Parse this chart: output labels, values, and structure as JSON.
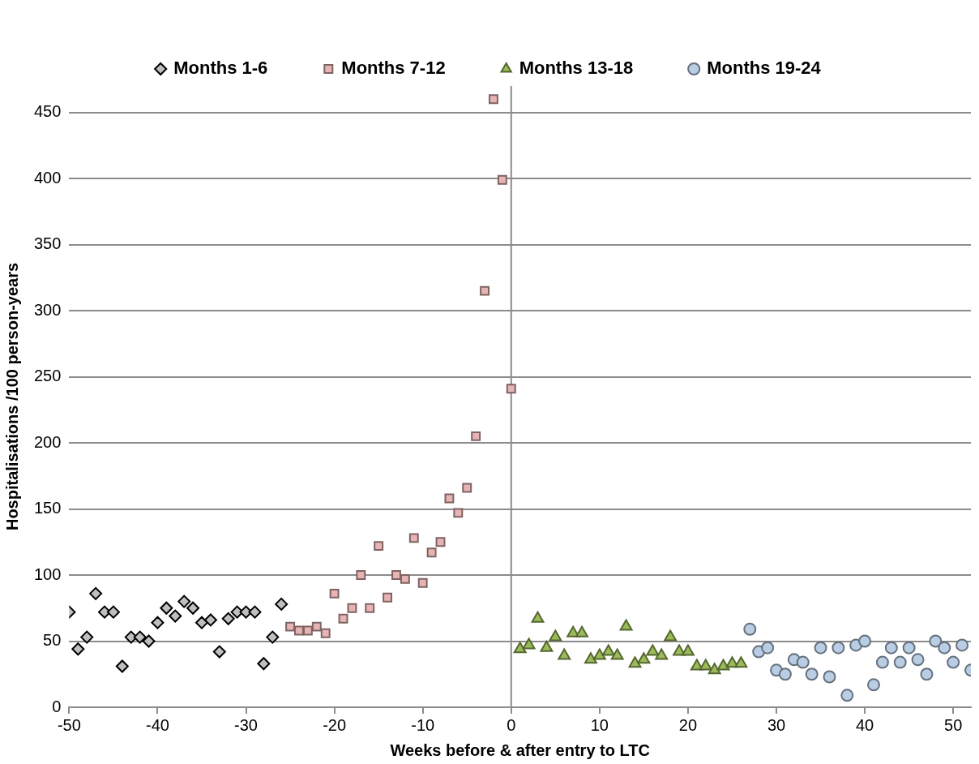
{
  "chart_data": {
    "type": "scatter",
    "xlabel": "Weeks before & after entry to LTC",
    "ylabel": "Hospitalisations /100 person-years",
    "xlim": [
      -50,
      52
    ],
    "xticks": [
      -50,
      -40,
      -30,
      -20,
      -10,
      0,
      10,
      20,
      30,
      40,
      50
    ],
    "ylim": [
      0,
      470
    ],
    "yticks": [
      0,
      50,
      100,
      150,
      200,
      250,
      300,
      350,
      400,
      450
    ],
    "grid": "y",
    "legend": "top",
    "ref_lines": [
      {
        "axis": "x",
        "value": 0,
        "color": "#8c8c8c"
      }
    ],
    "series": [
      {
        "name": "Months 1-6",
        "color": "#bfbfbf",
        "marker": "diamond",
        "x": [
          -50,
          -49,
          -48,
          -47,
          -46,
          -45,
          -44,
          -43,
          -42,
          -41,
          -40,
          -39,
          -38,
          -37,
          -36,
          -35,
          -34,
          -33,
          -32,
          -31,
          -30,
          -29,
          -28,
          -27,
          -26
        ],
        "values": [
          72,
          44,
          53,
          86,
          72,
          72,
          31,
          53,
          53,
          50,
          64,
          75,
          69,
          80,
          75,
          64,
          66,
          42,
          67,
          72,
          72,
          72,
          33,
          53,
          78
        ]
      },
      {
        "name": "Months 7-12",
        "color": "#e6b4b4",
        "marker": "square",
        "x": [
          -25,
          -24,
          -23,
          -22,
          -21,
          -20,
          -19,
          -18,
          -17,
          -16,
          -15,
          -14,
          -13,
          -12,
          -11,
          -10,
          -9,
          -8,
          -7,
          -6,
          -5,
          -4,
          -3,
          -2,
          -1,
          0
        ],
        "values": [
          61,
          58,
          58,
          61,
          56,
          86,
          67,
          75,
          100,
          75,
          122,
          83,
          100,
          97,
          128,
          94,
          117,
          125,
          158,
          147,
          166,
          205,
          315,
          460,
          399,
          241
        ]
      },
      {
        "name": "Months 13-18",
        "color": "#9bbb59",
        "marker": "triangle",
        "x": [
          1,
          2,
          3,
          4,
          5,
          6,
          7,
          8,
          9,
          10,
          11,
          12,
          13,
          14,
          15,
          16,
          17,
          18,
          19,
          20,
          21,
          22,
          23,
          24,
          25,
          26
        ],
        "values": [
          44,
          47,
          67,
          45,
          53,
          39,
          56,
          56,
          36,
          39,
          42,
          39,
          61,
          33,
          36,
          42,
          39,
          53,
          42,
          42,
          31,
          31,
          28,
          31,
          33,
          33
        ]
      },
      {
        "name": "Months 19-24",
        "color": "#b9cde5",
        "marker": "circle",
        "x": [
          27,
          28,
          29,
          30,
          31,
          32,
          33,
          34,
          35,
          36,
          37,
          38,
          39,
          40,
          41,
          42,
          43,
          44,
          45,
          46,
          47,
          48,
          49,
          50,
          51,
          52
        ],
        "values": [
          59,
          42,
          45,
          28,
          25,
          36,
          34,
          25,
          45,
          23,
          45,
          9,
          47,
          50,
          17,
          34,
          45,
          34,
          45,
          36,
          25,
          50,
          45,
          34,
          47,
          28
        ]
      }
    ]
  }
}
